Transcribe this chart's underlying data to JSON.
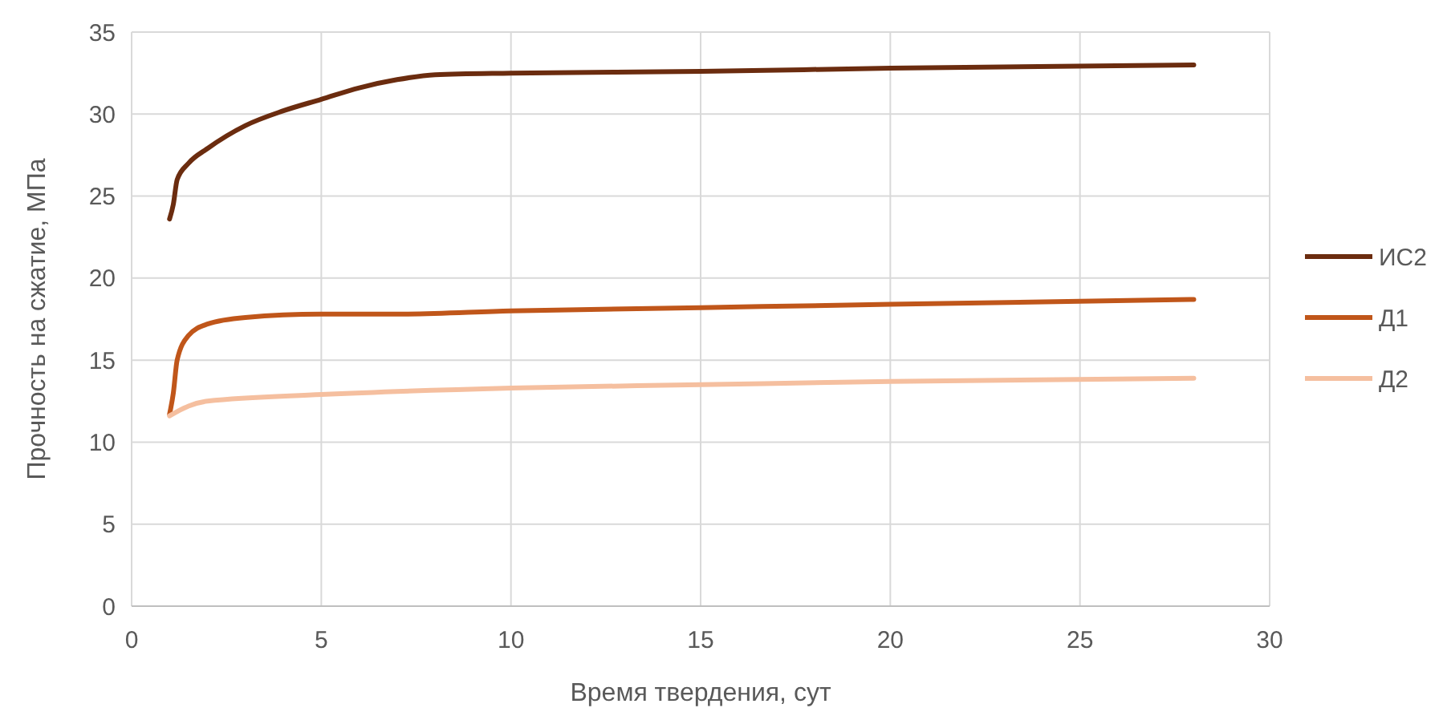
{
  "chart_data": {
    "type": "line",
    "xlabel": "Время твердения, сут",
    "ylabel": "Прочность на сжатие, МПа",
    "xlim": [
      0,
      30
    ],
    "xticks": [
      0,
      5,
      10,
      15,
      20,
      25,
      30
    ],
    "ylim": [
      0,
      35
    ],
    "yticks": [
      0,
      5,
      10,
      15,
      20,
      25,
      30,
      35
    ],
    "grid": true,
    "legend": "right",
    "marker": "none",
    "line_style": "solid",
    "series": [
      {
        "name": "ИС2",
        "color": "#6b2c0f",
        "x": [
          1,
          1.1,
          1.2,
          1.5,
          2,
          3,
          4,
          5,
          6,
          7,
          8,
          10,
          15,
          20,
          28
        ],
        "values": [
          23.6,
          24.5,
          26,
          27,
          27.9,
          29.3,
          30.2,
          30.9,
          31.6,
          32.1,
          32.4,
          32.5,
          32.6,
          32.8,
          33
        ]
      },
      {
        "name": "Д1",
        "color": "#c0561a",
        "x": [
          1,
          1.1,
          1.2,
          1.5,
          2,
          3,
          5,
          7,
          10,
          15,
          20,
          28
        ],
        "values": [
          11.7,
          13,
          15,
          16.5,
          17.2,
          17.6,
          17.8,
          17.8,
          18,
          18.2,
          18.4,
          18.7
        ]
      },
      {
        "name": "Д2",
        "color": "#f5bf9f",
        "x": [
          1,
          1.5,
          2,
          5,
          10,
          15,
          20,
          28
        ],
        "values": [
          11.6,
          12.2,
          12.5,
          12.9,
          13.3,
          13.5,
          13.7,
          13.9
        ]
      }
    ]
  }
}
